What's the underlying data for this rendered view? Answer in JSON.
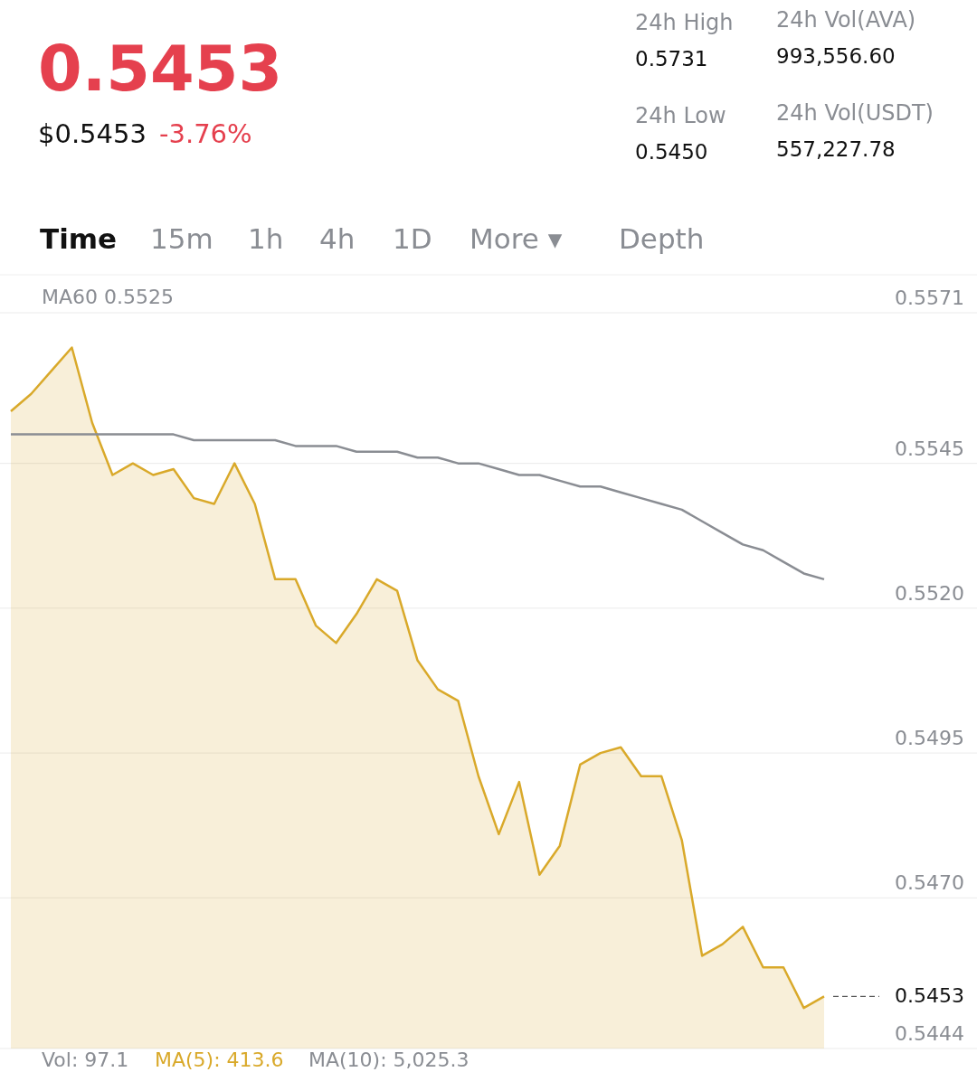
{
  "chart_data": {
    "type": "area",
    "title": "0.5453",
    "subtitle": "$0.5453",
    "annotations": [
      "-3.76%",
      "24h High",
      "0.5731",
      "24h Vol(AVA)",
      "993,556.60",
      "24h Low",
      "0.5450",
      "24h Vol(USDT)",
      "557,227.78",
      "Time",
      "15m",
      "1h",
      "4h",
      "1D",
      "More ▾",
      "Depth",
      "MA60 0.5525",
      "Vol: 97.1",
      "MA(5): 413.6",
      "MA(10): 5,025.3"
    ],
    "categories": [
      null,
      null,
      null,
      null,
      null,
      null,
      null,
      null,
      null,
      null,
      null,
      null,
      null,
      null,
      null,
      null,
      null,
      null,
      null,
      null,
      null,
      null,
      null,
      null,
      null,
      null,
      null,
      null,
      null,
      null,
      null,
      null,
      null,
      null,
      null,
      null,
      null,
      null,
      null,
      null,
      null
    ],
    "series": [
      {
        "color": "#d9a92a",
        "values": [
          0.5554,
          0.5557,
          0.5561,
          0.5565,
          0.5552,
          0.5543,
          0.5545,
          0.5543,
          0.5544,
          0.5539,
          0.5538,
          0.5545,
          0.5538,
          0.5525,
          0.5525,
          0.5517,
          0.5514,
          0.5519,
          0.5525,
          0.5523,
          0.5511,
          0.5506,
          0.5504,
          0.5491,
          0.5481,
          0.549,
          0.5474,
          0.5479,
          0.5493,
          0.5495,
          0.5496,
          0.5491,
          0.5491,
          0.548,
          0.546,
          0.5462,
          0.5465,
          0.5458,
          0.5458,
          0.5451,
          0.5453
        ]
      },
      {
        "type": "line",
        "color": "#8a8d93",
        "values": [
          0.555,
          0.555,
          0.555,
          0.555,
          0.555,
          0.555,
          0.555,
          0.555,
          0.555,
          0.5549,
          0.5549,
          0.5549,
          0.5549,
          0.5549,
          0.5548,
          0.5548,
          0.5548,
          0.5547,
          0.5547,
          0.5547,
          0.5546,
          0.5546,
          0.5545,
          0.5545,
          0.5544,
          0.5543,
          0.5543,
          0.5542,
          0.5541,
          0.5541,
          0.554,
          0.5539,
          0.5538,
          0.5537,
          0.5535,
          0.5533,
          0.5531,
          0.553,
          0.5528,
          0.5526,
          0.5525
        ]
      }
    ],
    "ylim": [
      0.5444,
      0.5571
    ],
    "yticks": [
      0.5571,
      0.5545,
      {
        "value": 0.552,
        "label": "0.5520"
      },
      0.5495,
      {
        "value": 0.547,
        "label": "0.5470"
      },
      0.5444
    ],
    "ref_lines": [
      {
        "axis": "y",
        "value": 0.5453,
        "label": "0.5453",
        "line_style": "dashed",
        "color": "#333333"
      }
    ],
    "grid": "y",
    "line_style": "solid"
  }
}
